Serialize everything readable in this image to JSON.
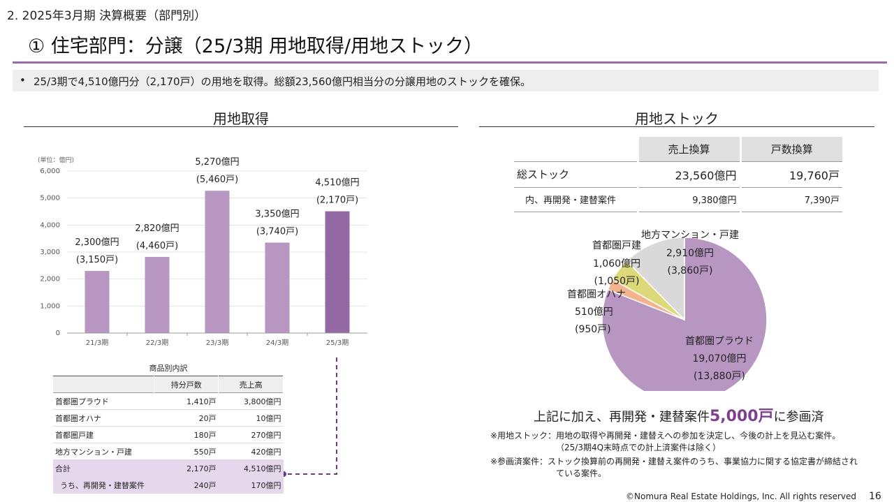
{
  "header": {
    "section_title": "2.  2025年3月期 決算概要（部門別）",
    "slide_title": "① 住宅部門：分譲（25/3期 用地取得/用地ストック）",
    "accent_color": "#9b6aa6"
  },
  "summary": {
    "bullet": "•",
    "text": "25/3期で4,510億円分（2,170戸）の用地を取得。総額23,560億円相当分の分譲用地のストックを確保。"
  },
  "left_panel": {
    "title": "用地取得"
  },
  "right_panel": {
    "title": "用地ストック"
  },
  "chart_data": [
    {
      "type": "bar",
      "unit_label": "(単位：億円)",
      "categories": [
        "21/3期",
        "22/3期",
        "23/3期",
        "24/3期",
        "25/3期"
      ],
      "values": [
        2300,
        2820,
        5270,
        3350,
        4510
      ],
      "value_labels": [
        "2,300億円",
        "2,820億円",
        "5,270億円",
        "3,350億円",
        "4,510億円"
      ],
      "unit_count_labels": [
        "(3,150戸)",
        "(4,460戸)",
        "(5,460戸)",
        "(3,740戸)",
        "(2,170戸)"
      ],
      "ylim": [
        0,
        6000
      ],
      "yticks": [
        0,
        1000,
        2000,
        3000,
        4000,
        5000,
        6000
      ],
      "ytick_labels": [
        "0",
        "1,000",
        "2,000",
        "3,000",
        "4,000",
        "5,000",
        "6,000"
      ],
      "grid": true,
      "bar_color": "#b896c2",
      "highlight_color": "#9468a2"
    },
    {
      "type": "pie",
      "slices": [
        {
          "label": "首都圏プラウド",
          "value": 19070,
          "value_label": "19,070億円",
          "units_label": "(13,880戸)",
          "color": "#b896c2"
        },
        {
          "label": "首都圏オハナ",
          "value": 510,
          "value_label": "510億円",
          "units_label": "(950戸)",
          "color": "#f2b48e"
        },
        {
          "label": "首都圏戸建",
          "value": 1060,
          "value_label": "1,060億円",
          "units_label": "(1,050戸)",
          "color": "#dcd97a"
        },
        {
          "label": "地方マンション・戸建",
          "value": 2910,
          "value_label": "2,910億円",
          "units_label": "(3,860戸)",
          "color": "#d9d9d9"
        }
      ]
    }
  ],
  "breakdown_table": {
    "caption": "商品別内訳",
    "headers": [
      "",
      "持分戸数",
      "売上高"
    ],
    "rows": [
      {
        "label": "首都圏プラウド",
        "units": "1,410戸",
        "sales": "3,800億円"
      },
      {
        "label": "首都圏オハナ",
        "units": "20戸",
        "sales": "10億円"
      },
      {
        "label": "首都圏戸建",
        "units": "180戸",
        "sales": "270億円"
      },
      {
        "label": "地方マンション・戸建",
        "units": "550戸",
        "sales": "420億円"
      }
    ],
    "total": {
      "label": "合計",
      "units": "2,170戸",
      "sales": "4,510億円"
    },
    "sub": {
      "label": "うち、再開発・建替案件",
      "units": "240戸",
      "sales": "170億円"
    }
  },
  "stock_table": {
    "headers": [
      "売上換算",
      "戸数換算"
    ],
    "total": {
      "label": "総ストック",
      "sales": "23,560億円",
      "units": "19,760戸"
    },
    "sub": {
      "label": "内、再開発・建替案件",
      "sales": "9,380億円",
      "units": "7,390戸"
    }
  },
  "extra_note": {
    "prefix": "上記に加え、再開発・建替案件",
    "highlight": "5,000戸",
    "suffix": "に参画済"
  },
  "footnotes": {
    "line1": "※用地ストック：用地の取得や再開発・建替えへの参加を決定し、今後の計上を見込む案件。",
    "line2": "（25/3期4Q末時点での計上済案件は除く）",
    "line3": "※参画済案件：ストック換算前の再開発・建替え案件のうち、事業協力に関する協定書が締結され",
    "line4": "ている案件。"
  },
  "footer": {
    "copyright": "©Nomura Real Estate Holdings, Inc. All rights reserved",
    "page_number": "16"
  }
}
